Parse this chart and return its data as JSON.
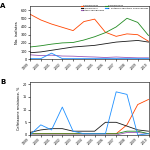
{
  "years": [
    1999,
    2000,
    2001,
    2002,
    2003,
    2004,
    2005,
    2006,
    2007,
    2008,
    2009,
    2010
  ],
  "panel_A": {
    "serogroup_B": [
      550,
      480,
      430,
      390,
      350,
      460,
      490,
      330,
      280,
      310,
      300,
      220
    ],
    "serogroup_C": [
      80,
      90,
      110,
      130,
      150,
      160,
      170,
      190,
      210,
      220,
      230,
      210
    ],
    "other_serogroups": [
      55,
      45,
      50,
      40,
      38,
      32,
      28,
      22,
      28,
      22,
      18,
      18
    ],
    "serogroup_D": [
      150,
      165,
      185,
      200,
      205,
      235,
      275,
      325,
      395,
      500,
      450,
      290
    ],
    "salmonella_choleraesuis": [
      8,
      8,
      75,
      8,
      8,
      8,
      8,
      8,
      8,
      8,
      8,
      8
    ]
  },
  "panel_B": {
    "serogroup_B": [
      0.5,
      0.5,
      0.5,
      0.5,
      0.5,
      0.5,
      0.5,
      0.5,
      0.5,
      4,
      12,
      14
    ],
    "serogroup_C": [
      1,
      2,
      2.5,
      2.5,
      1.5,
      1.5,
      1.5,
      5,
      5,
      3.5,
      2,
      1.5
    ],
    "other_serogroups": [
      0,
      0,
      0,
      0,
      0,
      0,
      0,
      0,
      0,
      1,
      1,
      0.5
    ],
    "serogroup_D": [
      0.5,
      0.5,
      0.5,
      0.5,
      0.5,
      0.5,
      0.5,
      0.5,
      0.5,
      1.5,
      1.5,
      0.5
    ],
    "salmonella_choleraesuis": [
      0,
      4,
      2,
      11,
      1.5,
      0.5,
      0.5,
      0.5,
      17,
      16,
      0,
      0.5
    ]
  },
  "colors": {
    "serogroup_B": "#FF4500",
    "serogroup_C": "#1a1a1a",
    "other_serogroups": "#9B59B6",
    "serogroup_D": "#228B22",
    "salmonella_choleraesuis": "#1E90FF"
  },
  "legend_labels": {
    "serogroup_B": "Serogroup B",
    "serogroup_C": "Serogroup C",
    "other_serogroups": "Other serogroups",
    "serogroup_D": "Serogroup D",
    "salmonella_choleraesuis": "S. enterica serotype Choleraesuis"
  },
  "ylim_A": [
    0,
    650
  ],
  "ylim_B": [
    0,
    21
  ],
  "yticks_A": [
    0,
    100,
    200,
    300,
    400,
    500,
    600
  ],
  "yticks_B": [
    0,
    5,
    10,
    15,
    20
  ],
  "xtick_labels": [
    "1999",
    "2000",
    "2001",
    "2002",
    "2003",
    "2004",
    "2005",
    "2006",
    "2007",
    "2008",
    "2009",
    "2010"
  ],
  "ylabel_A": "No. isolates",
  "ylabel_B": "Ceftriaxone resistance, %",
  "panel_labels": [
    "A",
    "B"
  ],
  "background_color": "#FFFFFF"
}
